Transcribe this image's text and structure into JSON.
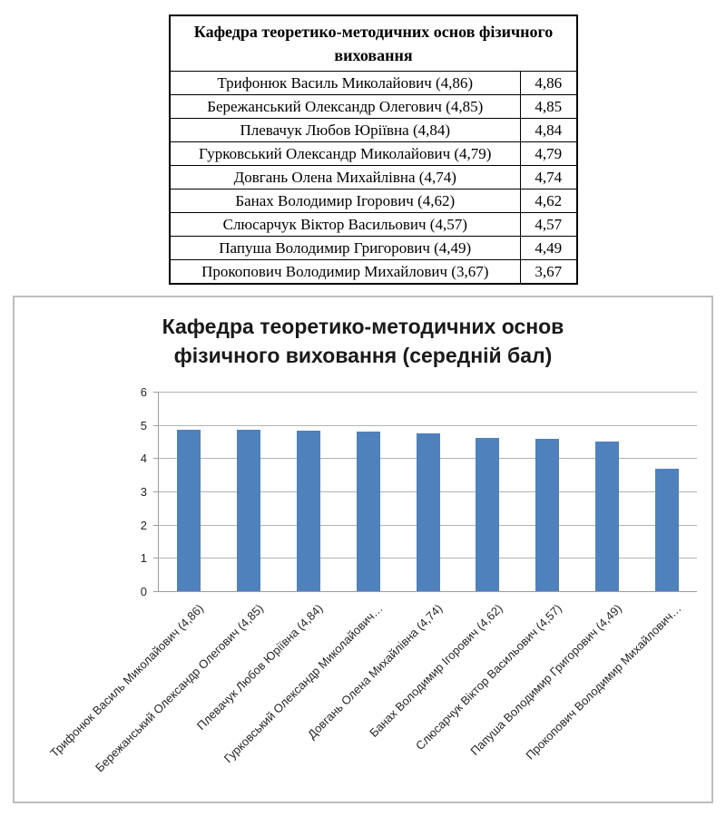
{
  "colors": {
    "bar_fill": "#4f81bd",
    "gridline": "#b3b3b3",
    "axis_line": "#9d9d9d",
    "chart_border": "#bdbdbd",
    "table_border": "#000000",
    "text": "#1a1a1a"
  },
  "table": {
    "title": "Кафедра теоретико-методичних основ фізичного виховання",
    "rows": [
      {
        "label": "Трифонюк Василь Миколайович (4,86)",
        "value": "4,86"
      },
      {
        "label": "Бережанський Олександр Олегович (4,85)",
        "value": "4,85"
      },
      {
        "label": "Плевачук Любов Юріївна (4,84)",
        "value": "4,84"
      },
      {
        "label": "Гурковський Олександр Миколайович (4,79)",
        "value": "4,79"
      },
      {
        "label": "Довгань Олена Михайлівна (4,74)",
        "value": "4,74"
      },
      {
        "label": "Банах Володимир Ігорович (4,62)",
        "value": "4,62"
      },
      {
        "label": "Слюсарчук Віктор Васильович (4,57)",
        "value": "4,57"
      },
      {
        "label": "Папуша Володимир Григорович (4,49)",
        "value": "4,49"
      },
      {
        "label": "Прокопович Володимир Михайлович (3,67)",
        "value": "3,67"
      }
    ]
  },
  "chart": {
    "title_line1": "Кафедра теоретико-методичних основ",
    "title_line2": "фізичного виховання (середній бал)"
  },
  "chart_data": {
    "type": "bar",
    "title": "Кафедра теоретико-методичних основ фізичного виховання (середній бал)",
    "categories": [
      "Трифонюк Василь Миколайович (4,86)",
      "Бережанський Олександр Олегович (4,85)",
      "Плевачук Любов Юріївна (4,84)",
      "Гурковський Олександр Миколайович…",
      "Довгань Олена Михайлівна (4,74)",
      "Банах Володимир Ігорович (4,62)",
      "Слюсарчук Віктор Васильович (4,57)",
      "Папуша Володимир Григорович (4,49)",
      "Прокопович Володимир Михайлович…"
    ],
    "values": [
      4.86,
      4.85,
      4.84,
      4.79,
      4.74,
      4.62,
      4.57,
      4.49,
      3.67
    ],
    "xlabel": "",
    "ylabel": "",
    "ylim": [
      0,
      6
    ],
    "yticks": [
      0,
      1,
      2,
      3,
      4,
      5,
      6
    ],
    "grid": true,
    "legend": false,
    "bar_color": "#4f81bd",
    "category_rotation_deg": -45
  }
}
